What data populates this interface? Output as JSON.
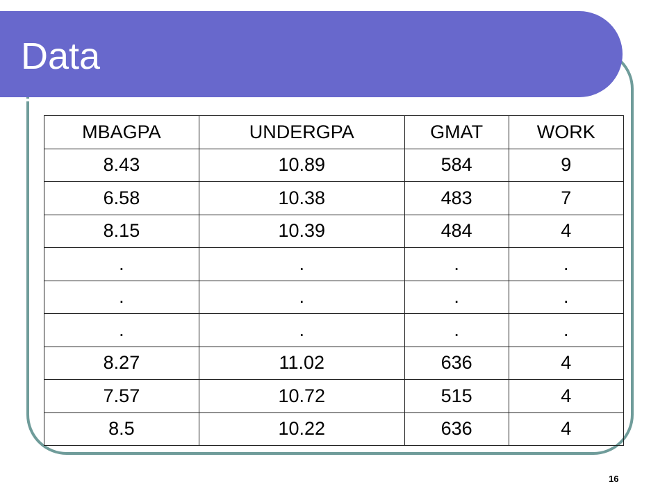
{
  "slide": {
    "title": "Data",
    "page_number": "16"
  },
  "table": {
    "headers": [
      "MBAGPA",
      "UNDERGPA",
      "GMAT",
      "WORK"
    ],
    "rows": [
      [
        "8.43",
        "10.89",
        "584",
        "9"
      ],
      [
        "6.58",
        "10.38",
        "483",
        "7"
      ],
      [
        "8.15",
        "10.39",
        "484",
        "4"
      ],
      [
        ".",
        ".",
        ".",
        "."
      ],
      [
        ".",
        ".",
        ".",
        "."
      ],
      [
        ".",
        ".",
        ".",
        "."
      ],
      [
        "8.27",
        "11.02",
        "636",
        "4"
      ],
      [
        "7.57",
        "10.72",
        "515",
        "4"
      ],
      [
        "8.5",
        "10.22",
        "636",
        "4"
      ]
    ]
  },
  "colors": {
    "title_bar": "#6868cc",
    "frame_border": "#6f9c9a"
  }
}
